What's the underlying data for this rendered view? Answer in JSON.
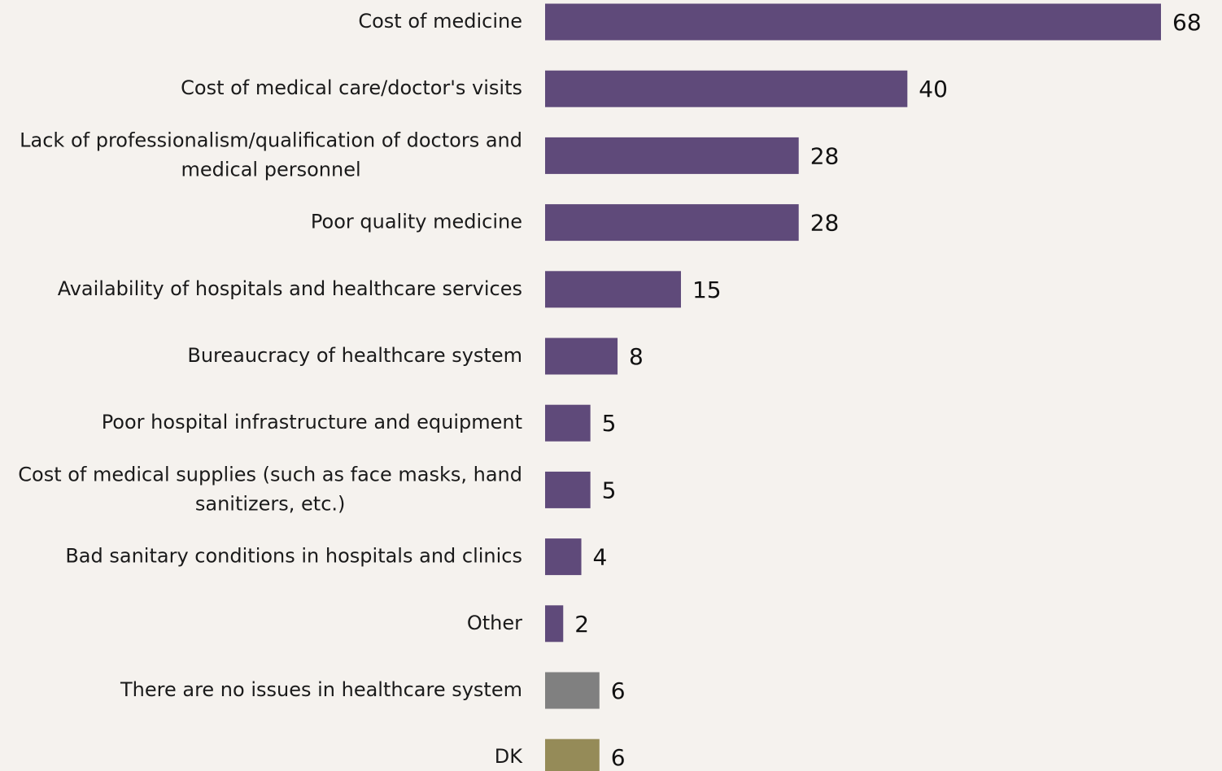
{
  "chart_data": {
    "type": "bar",
    "orientation": "horizontal",
    "title": "",
    "xlabel": "",
    "ylabel": "",
    "grid": false,
    "legend": "none",
    "xlim": [
      0,
      68
    ],
    "categories": [
      [
        "Cost of medicine"
      ],
      [
        "Cost of medical care/doctor's visits"
      ],
      [
        "Lack of professionalism/qualification of doctors and",
        "medical personnel"
      ],
      [
        "Poor quality medicine"
      ],
      [
        "Availability of hospitals and healthcare services"
      ],
      [
        "Bureaucracy of healthcare system"
      ],
      [
        "Poor hospital infrastructure and equipment"
      ],
      [
        "Cost of medical supplies (such as face masks, hand",
        "sanitizers, etc.)"
      ],
      [
        "Bad sanitary conditions in hospitals and clinics"
      ],
      [
        "Other"
      ],
      [
        "There are no issues in healthcare system"
      ],
      [
        "DK"
      ]
    ],
    "values": [
      68,
      40,
      28,
      28,
      15,
      8,
      5,
      5,
      4,
      2,
      6,
      6
    ],
    "value_labels": [
      "68",
      "40",
      "28",
      "28",
      "15",
      "8",
      "5",
      "5",
      "4",
      "2",
      "6",
      "6"
    ],
    "bar_colors": [
      "#5f4a7a",
      "#5f4a7a",
      "#5f4a7a",
      "#5f4a7a",
      "#5f4a7a",
      "#5f4a7a",
      "#5f4a7a",
      "#5f4a7a",
      "#5f4a7a",
      "#5f4a7a",
      "#808080",
      "#958b58"
    ]
  }
}
